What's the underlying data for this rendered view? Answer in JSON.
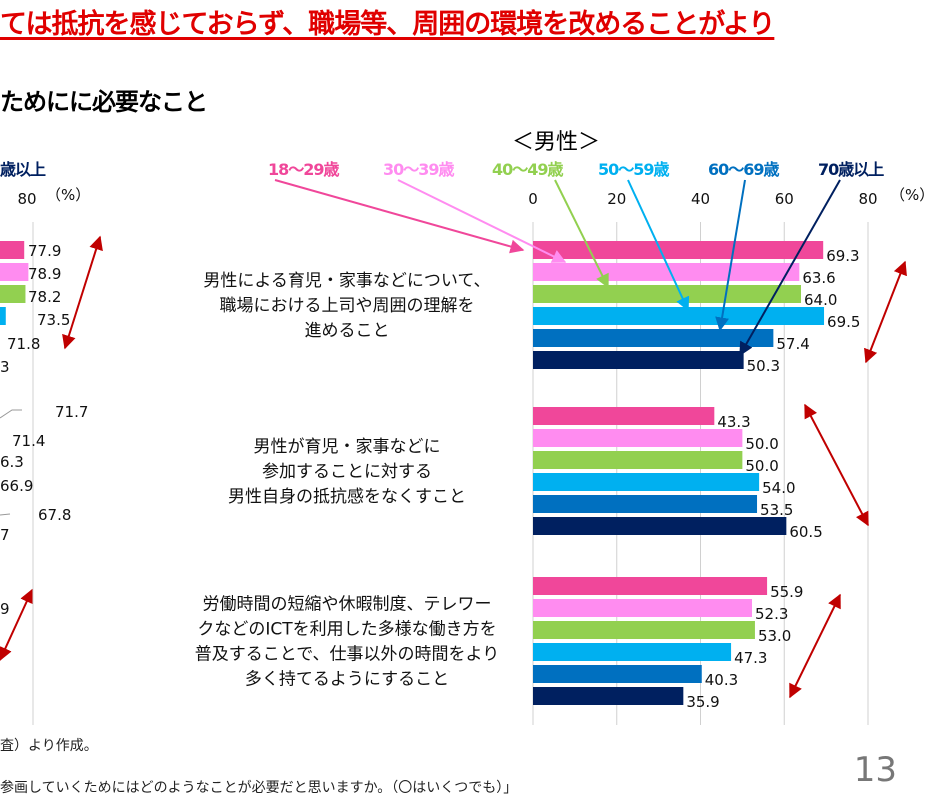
{
  "headline": "ては抵抗を感じておらず、職場等、周囲の環境を改めることがより",
  "subtitle": "ためにに必要なこと",
  "footnotes": [
    "査）より作成。",
    "参画していくためにはどのようなことが必要だと思いますか。（〇はいくつでも）」"
  ],
  "page_number": "13",
  "left_panel": {
    "legend_partial": "歳以上",
    "tick_partial": "80",
    "unit": "（%）",
    "visible_labels": [
      [
        "77.9",
        "78.9",
        "78.2",
        "73.5",
        "71.8",
        "3"
      ],
      [
        "71.7",
        "71.4",
        "6.3",
        "66.9",
        "67.8",
        "7"
      ],
      [
        "9"
      ]
    ],
    "visible_values": [
      77.9,
      78.9,
      78.2,
      73.5,
      71.8
    ]
  },
  "chart_data": {
    "type": "bar",
    "orientation": "horizontal",
    "title": "＜男性＞",
    "unit": "（%）",
    "xlim": [
      0,
      80
    ],
    "ticks": [
      "0",
      "20",
      "40",
      "60",
      "80"
    ],
    "grid": "vertical lines at ticks",
    "legend_placement": "top with pointer lines",
    "categories": [
      [
        "男性による育児・家事などについて、",
        "職場における上司や周囲の理解を",
        "進めること"
      ],
      [
        "男性が育児・家事などに",
        "参加することに対する",
        "男性自身の抵抗感をなくすこと"
      ],
      [
        "労働時間の短縮や休暇制度、テレワー",
        "クなどのICTを利用した多様な働き方を",
        "普及することで、仕事以外の時間をより",
        "多く持てるようにすること"
      ]
    ],
    "series": [
      {
        "name": "18～29歳",
        "color": "#f0479a",
        "values": [
          69.3,
          43.3,
          55.9
        ]
      },
      {
        "name": "30～39歳",
        "color": "#ff8cf0",
        "values": [
          63.6,
          50.0,
          52.3
        ]
      },
      {
        "name": "40～49歳",
        "color": "#92d050",
        "values": [
          64.0,
          50.0,
          53.0
        ]
      },
      {
        "name": "50～59歳",
        "color": "#00b0f0",
        "values": [
          69.5,
          54.0,
          47.3
        ]
      },
      {
        "name": "60～69歳",
        "color": "#0070c0",
        "values": [
          57.4,
          53.5,
          40.3
        ]
      },
      {
        "name": "70歳以上",
        "color": "#002060",
        "values": [
          50.3,
          60.5,
          35.9
        ]
      }
    ],
    "annotation_arrow_color": "#c00000"
  }
}
